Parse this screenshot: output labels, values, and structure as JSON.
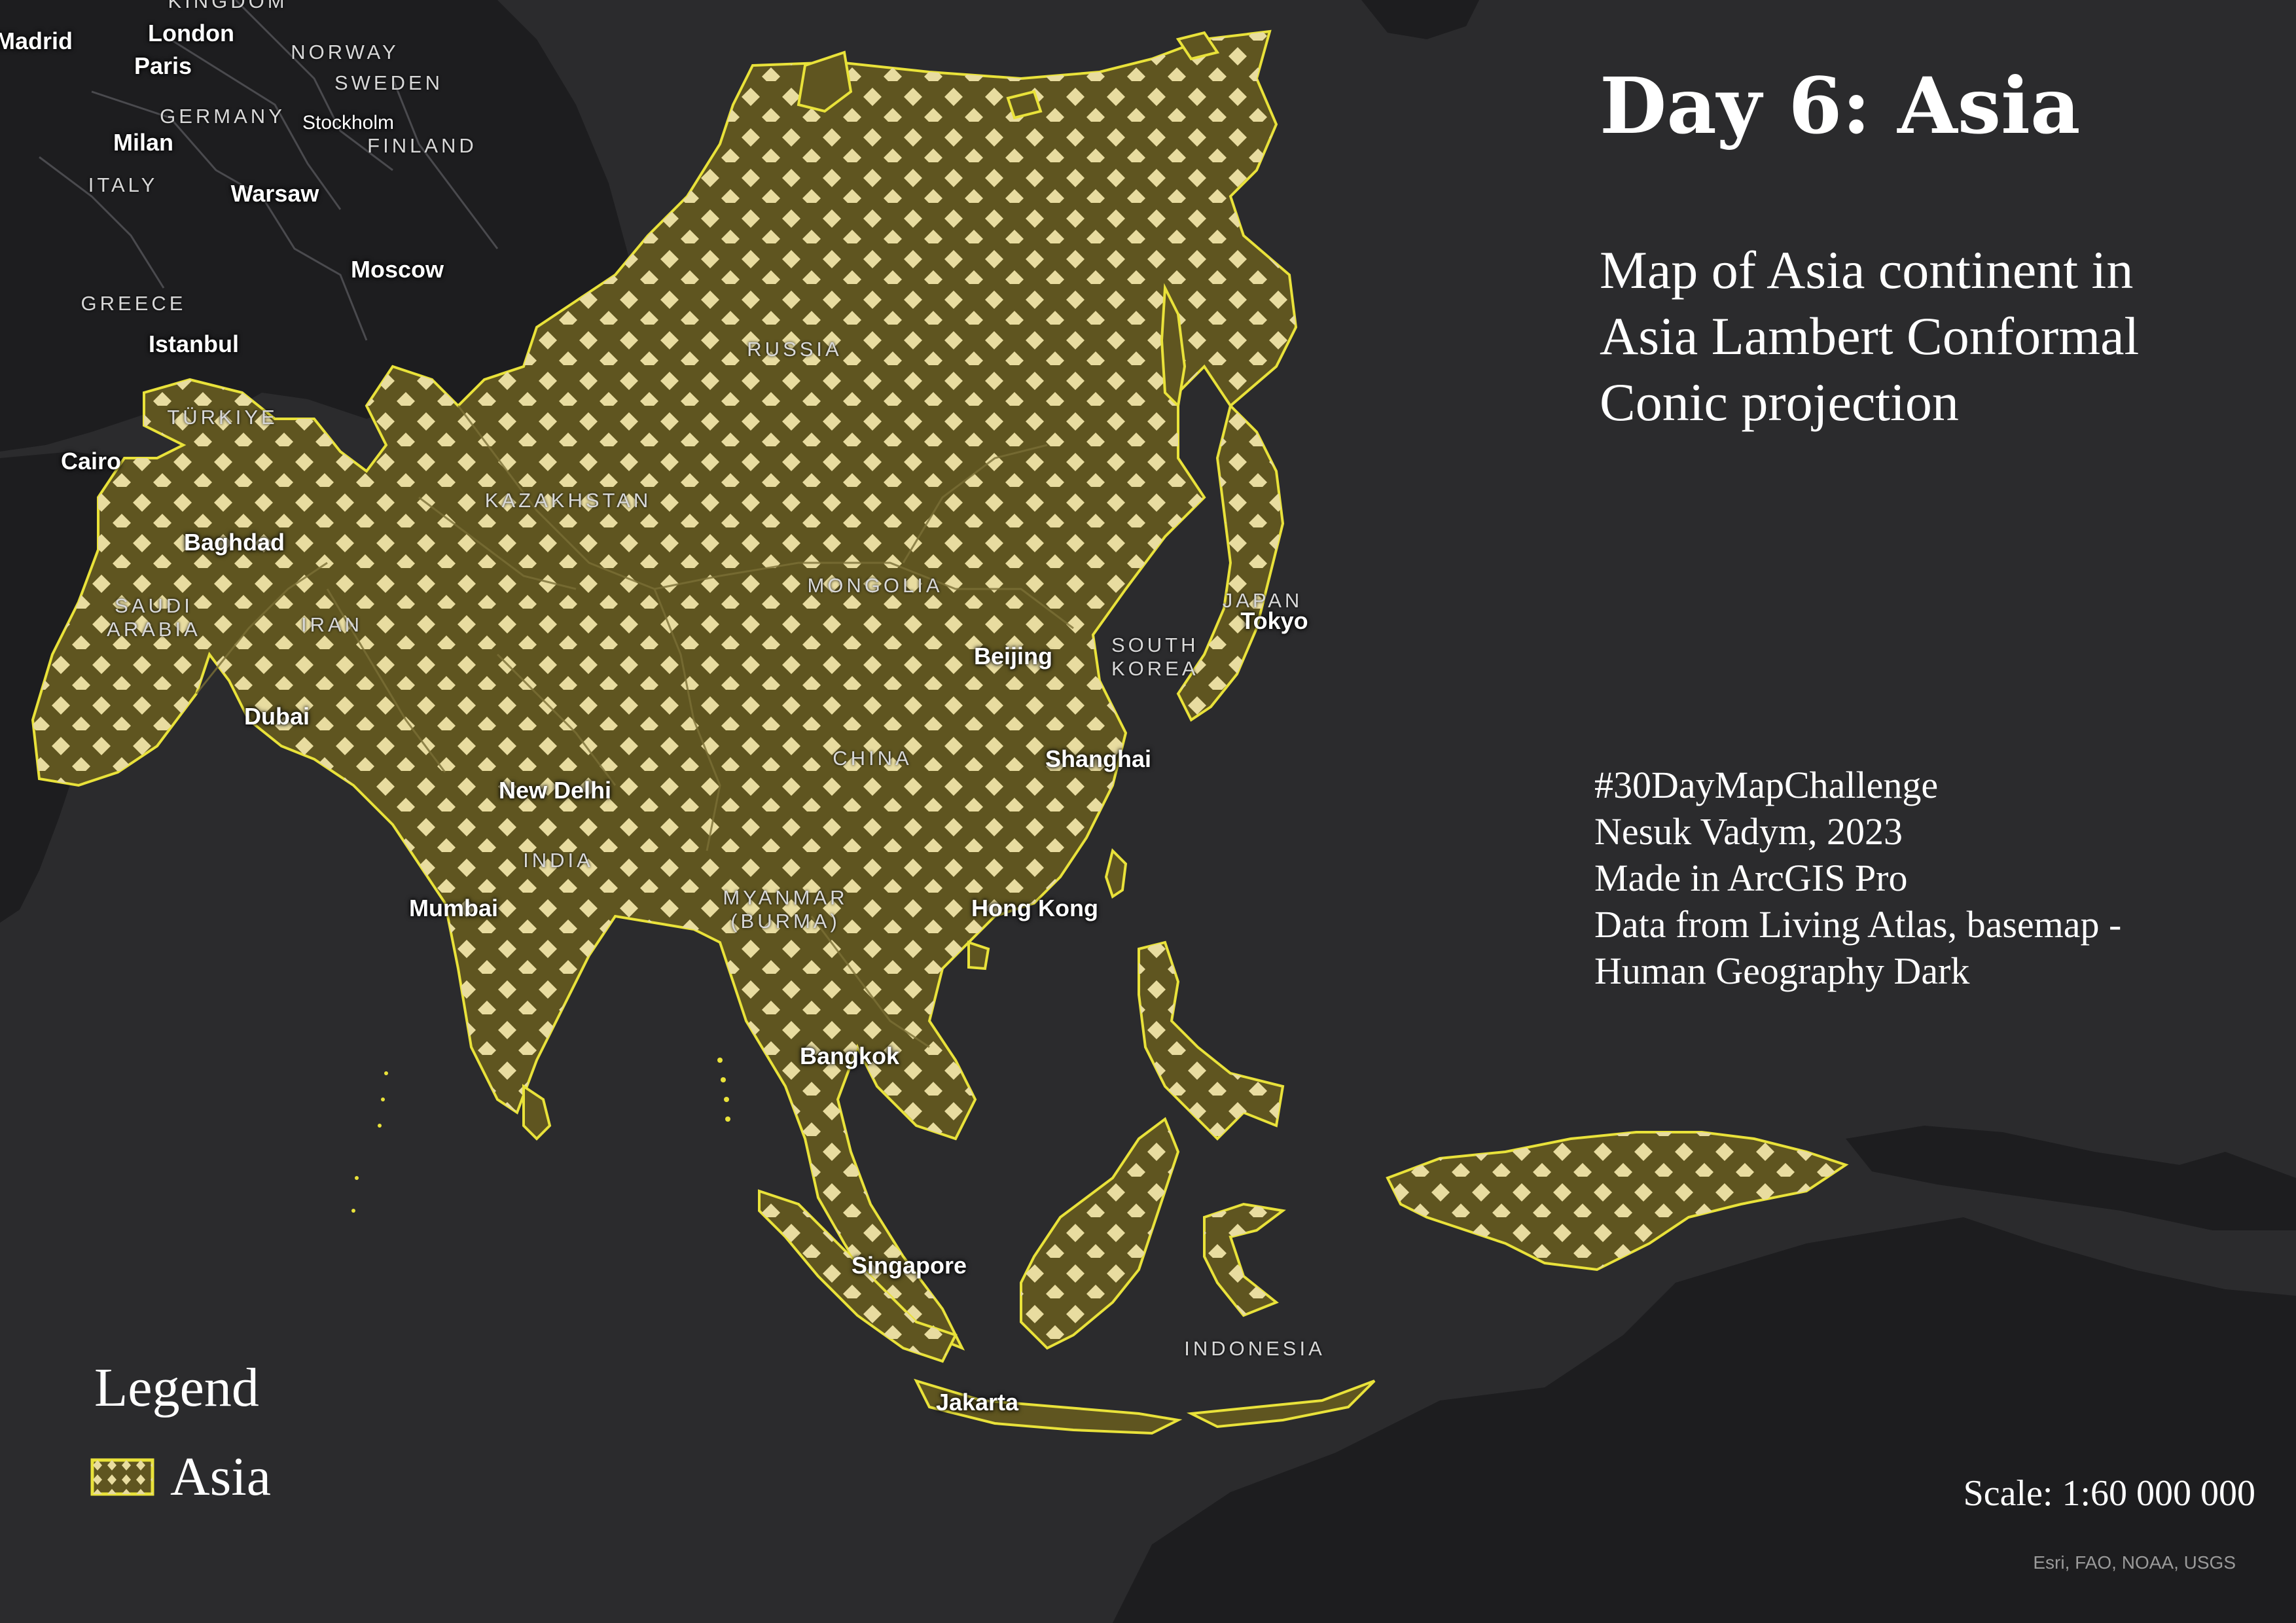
{
  "colors": {
    "background": "#2b2b2d",
    "land_dark": "#1c1c1e",
    "asia_fill": "#5f5520",
    "asia_outline": "#e9e23a",
    "dot_fill": "#e8dca0",
    "country_border": "#4a4a4e",
    "text": "#ffffff"
  },
  "title": "Day 6: Asia",
  "subtitle": "Map of Asia continent in Asia Lambert Conformal Conic projection",
  "credits": [
    "#30DayMapChallenge",
    "Nesuk Vadym, 2023",
    "Made in ArcGIS Pro",
    "Data from Living Atlas, basemap -",
    "Human Geography Dark"
  ],
  "legend": {
    "title": "Legend",
    "item_label": "Asia",
    "symbol": "yellow-outline-with-diamond-pattern"
  },
  "scale": "Scale: 1:60 000 000",
  "attribution": "Esri, FAO, NOAA, USGS",
  "cities": [
    "Madrid",
    "London",
    "Paris",
    "Milan",
    "Warsaw",
    "Stockholm",
    "Moscow",
    "Istanbul",
    "Cairo",
    "Baghdad",
    "Dubai",
    "New Delhi",
    "Mumbai",
    "Beijing",
    "Tokyo",
    "Shanghai",
    "Hong Kong",
    "Bangkok",
    "Singapore",
    "Jakarta"
  ],
  "countries": [
    "KINGDOM",
    "NORWAY",
    "SWEDEN",
    "GERMANY",
    "FINLAND",
    "ITALY",
    "GREECE",
    "TÜRKIYE",
    "SAUDI ARABIA",
    "IRAN",
    "KAZAKHSTAN",
    "RUSSIA",
    "MONGOLIA",
    "CHINA",
    "INDIA",
    "MYANMAR (BURMA)",
    "SOUTH KOREA",
    "JAPAN",
    "INDONESIA"
  ]
}
